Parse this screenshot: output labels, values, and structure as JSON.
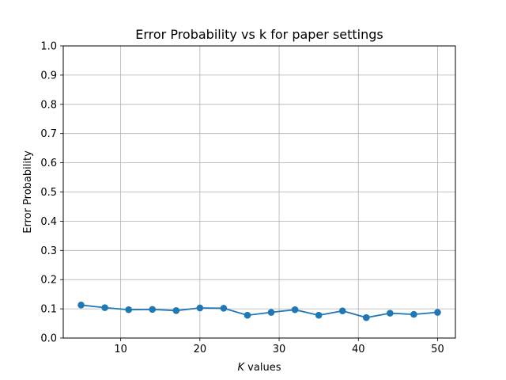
{
  "chart_data": {
    "type": "line",
    "title": "Error Probability vs k for paper settings",
    "xlabel_italic": "K",
    "xlabel_rest": " values",
    "ylabel": "Error Probability",
    "xlim": [
      2.75,
      52.25
    ],
    "ylim": [
      0.0,
      1.0
    ],
    "xticks": [
      10,
      20,
      30,
      40,
      50
    ],
    "yticks": [
      0.0,
      0.1,
      0.2,
      0.3,
      0.4,
      0.5,
      0.6,
      0.7,
      0.8,
      0.9,
      1.0
    ],
    "ytick_labels": [
      "0.0",
      "0.1",
      "0.2",
      "0.3",
      "0.4",
      "0.5",
      "0.6",
      "0.7",
      "0.8",
      "0.9",
      "1.0"
    ],
    "grid": true,
    "legend": "none",
    "series": [
      {
        "color": "#1f77b4",
        "marker": "circle",
        "x": [
          5,
          8,
          11,
          14,
          17,
          20,
          23,
          26,
          29,
          32,
          35,
          38,
          41,
          44,
          47,
          50
        ],
        "y": [
          0.113,
          0.104,
          0.097,
          0.098,
          0.094,
          0.103,
          0.102,
          0.078,
          0.088,
          0.097,
          0.078,
          0.093,
          0.07,
          0.085,
          0.081,
          0.088
        ]
      }
    ]
  }
}
